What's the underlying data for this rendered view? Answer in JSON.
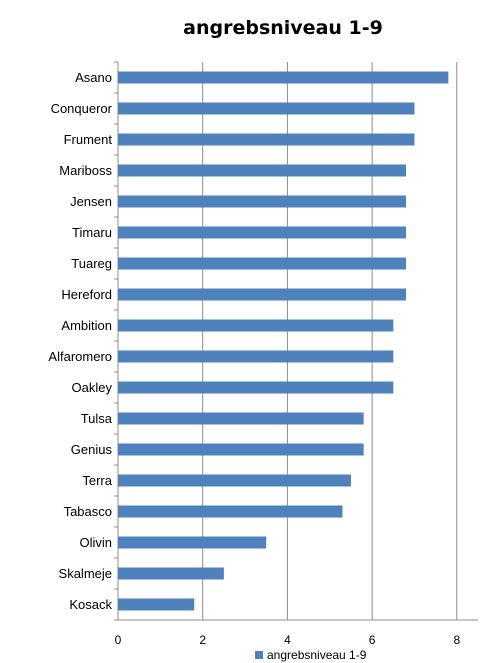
{
  "chart_data": {
    "type": "bar",
    "orientation": "horizontal",
    "title": "angrebsniveau 1-9",
    "categories": [
      "Asano",
      "Conqueror",
      "Frument",
      "Mariboss",
      "Jensen",
      "Timaru",
      "Tuareg",
      "Hereford",
      "Ambition",
      "Alfaromero",
      "Oakley",
      "Tulsa",
      "Genius",
      "Terra",
      "Tabasco",
      "Olivin",
      "Skalmeje",
      "Kosack"
    ],
    "series": [
      {
        "name": "angrebsniveau 1-9",
        "values": [
          7.8,
          7.0,
          7.0,
          6.8,
          6.8,
          6.8,
          6.8,
          6.8,
          6.5,
          6.5,
          6.5,
          5.8,
          5.8,
          5.5,
          5.3,
          3.5,
          2.5,
          1.8
        ]
      }
    ],
    "xlim": [
      0,
      8.5
    ],
    "xticks": [
      0,
      2,
      4,
      6,
      8
    ],
    "grid": true,
    "legend": "bottom",
    "bar_color": "#4f81bd",
    "grid_color": "#8c8c8c"
  }
}
